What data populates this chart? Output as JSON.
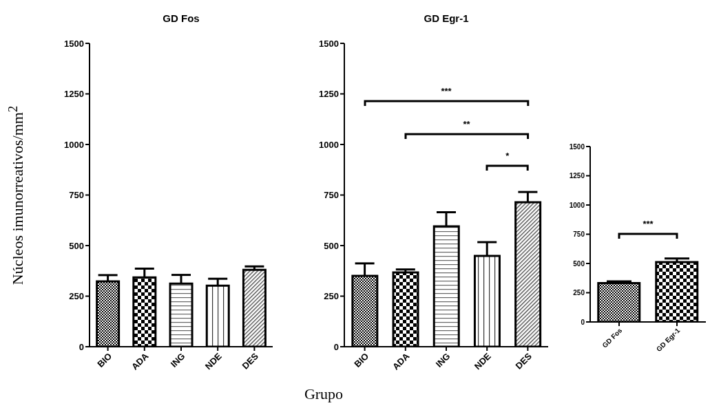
{
  "chart_data": [
    {
      "type": "bar",
      "title": "GD Fos",
      "ylabel": "Núcleos imunorreativos/mm$^{2}$",
      "categories": [
        "BIO",
        "ADA",
        "ING",
        "NDE",
        "DES"
      ],
      "values": [
        323,
        343,
        312,
        302,
        380
      ],
      "errors": [
        [
          323,
          354
        ],
        [
          343,
          386
        ],
        [
          312,
          355
        ],
        [
          302,
          336
        ],
        [
          380,
          397
        ]
      ],
      "ylim": [
        0,
        1500
      ],
      "yticks": [
        0,
        250,
        500,
        750,
        1000,
        1250,
        1500
      ]
    },
    {
      "type": "bar",
      "title": "GD Egr-1",
      "xlabel": "Grupo",
      "categories": [
        "BIO",
        "ADA",
        "ING",
        "NDE",
        "DES"
      ],
      "values": [
        350,
        367,
        595,
        449,
        714
      ],
      "errors": [
        [
          350,
          412
        ],
        [
          367,
          382
        ],
        [
          595,
          665
        ],
        [
          449,
          517
        ],
        [
          714,
          765
        ]
      ],
      "ylim": [
        0,
        1500
      ],
      "yticks": [
        0,
        250,
        500,
        750,
        1000,
        1250,
        1500
      ],
      "annotations": [
        "***",
        "**",
        "*"
      ]
    },
    {
      "type": "bar",
      "categories": [
        "GD Fos",
        "GD Egr-1"
      ],
      "values": [
        333,
        512
      ],
      "errors": [
        [
          333,
          347
        ],
        [
          512,
          542
        ]
      ],
      "ylim": [
        0,
        1500
      ],
      "yticks": [
        0,
        250,
        500,
        750,
        1000,
        1250,
        1500
      ],
      "annotations": [
        "***"
      ]
    }
  ]
}
